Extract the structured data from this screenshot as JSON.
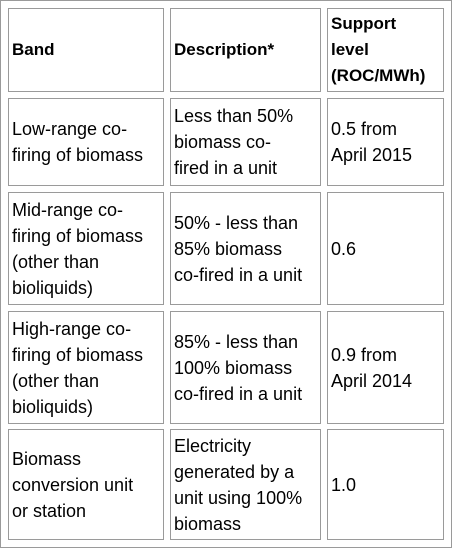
{
  "table": {
    "headers": [
      "Band",
      "Description*",
      "Support\nlevel\n(ROC/MWh)"
    ],
    "rows": [
      [
        "Low-range co-\nfiring of biomass",
        "Less than 50%\nbiomass co-\nfired in a unit",
        "0.5 from\nApril 2015"
      ],
      [
        "Mid-range co-\nfiring of biomass\n(other than\nbioliquids)",
        "50% - less than\n85% biomass\nco-fired in a unit",
        "0.6"
      ],
      [
        "High-range co-\nfiring of biomass\n(other than\nbioliquids)",
        "85% - less than\n100% biomass\nco-fired in a unit",
        "0.9 from\nApril 2014"
      ],
      [
        "Biomass\nconversion unit\nor station",
        "Electricity\ngenerated by a\nunit using 100%\nbiomass",
        "1.0"
      ]
    ]
  }
}
